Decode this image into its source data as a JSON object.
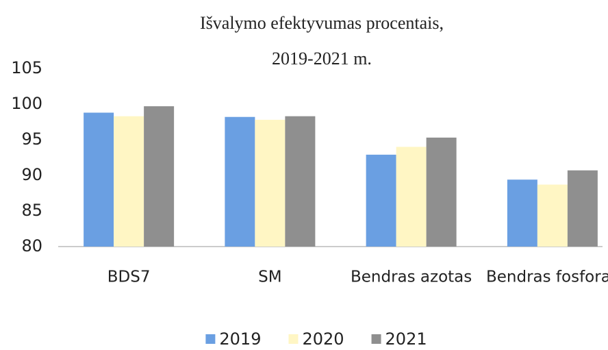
{
  "chart_data": {
    "type": "bar",
    "title": [
      "Išvalymo efektyvumas procentais,",
      "2019-2021 m."
    ],
    "categories": [
      "BDS7",
      "SM",
      "Bendras azotas",
      "Bendras fosforas"
    ],
    "series": [
      {
        "name": "2019",
        "color": "#6a9fe2",
        "values": [
          98.8,
          98.2,
          92.9,
          89.4
        ]
      },
      {
        "name": "2020",
        "color": "#fff6c4",
        "values": [
          98.3,
          97.8,
          94.0,
          88.7
        ]
      },
      {
        "name": "2021",
        "color": "#8f8f8f",
        "values": [
          99.7,
          98.3,
          95.3,
          90.7
        ]
      }
    ],
    "ylim": [
      80,
      105
    ],
    "yticks": [
      80,
      85,
      90,
      95,
      100,
      105
    ],
    "grid": false
  }
}
